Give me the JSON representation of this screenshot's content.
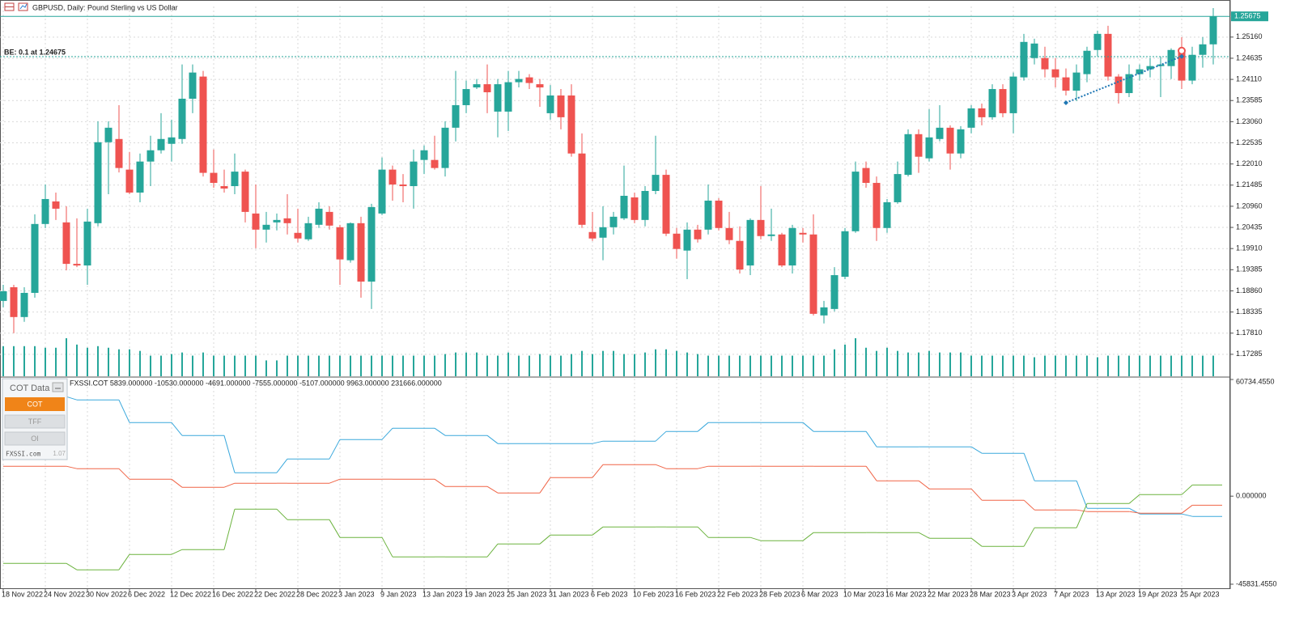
{
  "header": {
    "title": "GBPUSD, Daily:  Pound Sterling vs US Dollar"
  },
  "chart_data": [
    {
      "type": "candlestick",
      "categories": [
        "18 Nov 2022",
        null,
        null,
        null,
        "24 Nov 2022",
        null,
        null,
        null,
        "30 Nov 2022",
        null,
        null,
        null,
        "6 Dec 2022",
        null,
        null,
        null,
        "12 Dec 2022",
        null,
        null,
        null,
        "16 Dec 2022",
        null,
        null,
        null,
        "22 Dec 2022",
        null,
        null,
        null,
        "28 Dec 2022",
        null,
        null,
        null,
        "3 Jan 2023",
        null,
        null,
        null,
        "9 Jan 2023",
        null,
        null,
        null,
        "13 Jan 2023",
        null,
        null,
        null,
        "19 Jan 2023",
        null,
        null,
        null,
        "25 Jan 2023",
        null,
        null,
        null,
        "31 Jan 2023",
        null,
        null,
        null,
        "6 Feb 2023",
        null,
        null,
        null,
        "10 Feb 2023",
        null,
        null,
        null,
        "16 Feb 2023",
        null,
        null,
        null,
        "22 Feb 2023",
        null,
        null,
        null,
        "28 Feb 2023",
        null,
        null,
        null,
        "6 Mar 2023",
        null,
        null,
        null,
        "10 Mar 2023",
        null,
        null,
        null,
        "16 Mar 2023",
        null,
        null,
        null,
        "22 Mar 2023",
        null,
        null,
        null,
        "28 Mar 2023",
        null,
        null,
        null,
        "3 Apr 2023",
        null,
        null,
        null,
        "7 Apr 2023",
        null,
        null,
        null,
        "13 Apr 2023",
        null,
        null,
        null,
        "19 Apr 2023",
        null,
        null,
        null,
        "25 Apr 2023",
        null,
        null,
        null
      ],
      "open": [
        1.1861,
        1.1895,
        1.1821,
        1.1881,
        1.2052,
        1.2108,
        1.2056,
        1.1953,
        1.1949,
        1.2054,
        1.2255,
        1.2263,
        1.2187,
        1.213,
        1.2207,
        1.2235,
        1.2251,
        1.2263,
        1.2363,
        1.2418,
        1.2179,
        1.2146,
        1.2146,
        1.2182,
        1.2078,
        1.2038,
        1.2056,
        1.2066,
        1.203,
        1.2014,
        1.205,
        1.2082,
        1.2044,
        1.1962,
        1.2054,
        1.1909,
        1.2078,
        1.2187,
        1.215,
        1.2146,
        1.2211,
        1.2211,
        1.2191,
        1.2291,
        1.2347,
        1.2391,
        1.2399,
        1.2331,
        1.2331,
        1.2404,
        1.2416,
        1.2399,
        1.2327,
        1.2371,
        1.2371,
        1.2227,
        1.2032,
        1.2018,
        1.2044,
        1.2066,
        1.2118,
        1.2062,
        1.2134,
        1.2174,
        1.2028,
        1.1986,
        1.2038,
        1.2038,
        1.211,
        1.2042,
        1.201,
        1.1949,
        1.2062,
        1.2022,
        1.2026,
        1.1949,
        1.203,
        1.2026,
        1.1825,
        1.1841,
        1.1921,
        1.2034,
        1.2191,
        1.2154,
        1.2042,
        1.2106,
        1.2174,
        1.2275,
        1.2215,
        1.2263,
        1.2291,
        1.2227,
        1.2291,
        1.2339,
        1.2317,
        1.2387,
        1.2327,
        1.2416,
        1.2464,
        1.2464,
        1.2436,
        1.2416,
        1.2383,
        1.2424,
        1.2484,
        1.2524,
        1.2418,
        1.2377,
        1.2424,
        1.2436,
        1.2444,
        1.2444,
        1.2484,
        1.2408,
        1.2472,
        1.2498
      ],
      "high": [
        1.1901,
        1.1901,
        1.1895,
        1.2076,
        1.215,
        1.213,
        1.2096,
        1.2066,
        1.209,
        1.2307,
        1.2307,
        1.2347,
        1.2231,
        1.2227,
        1.2271,
        1.2327,
        1.2311,
        1.2448,
        1.2448,
        1.2432,
        1.2237,
        1.2187,
        1.2227,
        1.2187,
        1.215,
        1.2082,
        1.2078,
        1.2126,
        1.209,
        1.207,
        1.2106,
        1.2096,
        1.205,
        1.2056,
        1.207,
        1.2102,
        1.2217,
        1.2197,
        1.2176,
        1.2237,
        1.2247,
        1.2271,
        1.2307,
        1.2432,
        1.2408,
        1.2412,
        1.2448,
        1.2412,
        1.2432,
        1.2432,
        1.2424,
        1.2412,
        1.2397,
        1.2387,
        1.2399,
        1.2277,
        1.2082,
        1.2096,
        1.2082,
        1.2197,
        1.213,
        1.2146,
        1.2271,
        1.2187,
        1.2042,
        1.2056,
        1.205,
        1.215,
        1.2116,
        1.2082,
        1.2046,
        1.2066,
        1.2146,
        1.209,
        1.203,
        1.205,
        1.2042,
        1.2076,
        1.1861,
        1.1945,
        1.2042,
        1.2207,
        1.2207,
        1.217,
        1.2114,
        1.2207,
        1.2287,
        1.2287,
        1.2337,
        1.2347,
        1.2297,
        1.2295,
        1.2347,
        1.2351,
        1.2399,
        1.2399,
        1.2428,
        1.2524,
        1.2512,
        1.2492,
        1.2464,
        1.2438,
        1.2448,
        1.2492,
        1.2532,
        1.2544,
        1.2424,
        1.2448,
        1.2448,
        1.2464,
        1.2468,
        1.2488,
        1.2516,
        1.2492,
        1.2516,
        1.2588
      ],
      "low": [
        1.1845,
        1.1781,
        1.1809,
        1.1869,
        1.2042,
        1.2062,
        1.1937,
        1.1945,
        1.1901,
        1.2046,
        1.2126,
        1.218,
        1.2126,
        1.2106,
        1.2146,
        1.2227,
        1.2207,
        1.2251,
        1.2327,
        1.217,
        1.2142,
        1.213,
        1.2126,
        1.2056,
        1.1992,
        1.2006,
        1.2036,
        1.2026,
        1.2006,
        1.201,
        1.2042,
        1.2038,
        1.1901,
        1.1956,
        1.1869,
        1.1841,
        1.2074,
        1.211,
        1.2106,
        1.209,
        1.2176,
        1.2187,
        1.217,
        1.2257,
        1.2327,
        1.2387,
        1.2327,
        1.2267,
        1.2283,
        1.2391,
        1.2387,
        1.2343,
        1.2311,
        1.2287,
        1.2219,
        1.2042,
        1.201,
        1.1962,
        1.2026,
        1.2062,
        1.2054,
        1.2046,
        1.2126,
        1.2022,
        1.1966,
        1.1915,
        1.2006,
        1.2026,
        1.2036,
        1.2002,
        1.1929,
        1.1925,
        1.2014,
        1.201,
        1.1945,
        1.1929,
        1.2006,
        1.1825,
        1.1805,
        1.1835,
        1.1915,
        1.203,
        1.2142,
        1.201,
        1.203,
        1.2102,
        1.217,
        1.2179,
        1.2207,
        1.2257,
        1.2187,
        1.2215,
        1.2277,
        1.2297,
        1.2311,
        1.2317,
        1.2277,
        1.2408,
        1.2448,
        1.2416,
        1.2391,
        1.2371,
        1.2357,
        1.2404,
        1.2468,
        1.2408,
        1.2351,
        1.2367,
        1.2408,
        1.2416,
        1.2367,
        1.2412,
        1.2387,
        1.2399,
        1.244,
        1.2448
      ],
      "close": [
        1.1885,
        1.1821,
        1.1881,
        1.2052,
        1.2114,
        1.209,
        1.1953,
        1.1949,
        1.2058,
        1.2255,
        1.2291,
        1.2191,
        1.213,
        1.2207,
        1.2235,
        1.2263,
        1.2267,
        1.2363,
        1.2428,
        1.2179,
        1.2154,
        1.214,
        1.2182,
        1.2082,
        1.2038,
        1.205,
        1.2062,
        1.2054,
        1.2016,
        1.2054,
        1.209,
        1.2048,
        1.1964,
        1.2054,
        1.1909,
        1.2094,
        1.2187,
        1.215,
        1.2146,
        1.2207,
        1.2235,
        1.2191,
        1.2291,
        1.2347,
        1.2387,
        1.2399,
        1.2379,
        1.2399,
        1.2404,
        1.2412,
        1.2402,
        1.2391,
        1.2371,
        1.2317,
        1.2227,
        1.205,
        1.2016,
        1.2044,
        1.207,
        1.2122,
        1.2062,
        1.2134,
        1.2174,
        1.2028,
        1.199,
        1.2038,
        1.2014,
        1.211,
        1.2042,
        1.2012,
        1.1939,
        1.2062,
        1.2022,
        1.2026,
        1.1949,
        1.2042,
        1.2026,
        1.1829,
        1.1845,
        1.1925,
        1.2034,
        1.2182,
        1.2154,
        1.2042,
        1.2106,
        1.2176,
        1.2275,
        1.2219,
        1.2267,
        1.2291,
        1.2227,
        1.2287,
        1.2339,
        1.2317,
        1.2387,
        1.2327,
        1.2418,
        1.2504,
        1.25,
        1.2436,
        1.2416,
        1.2383,
        1.2428,
        1.2482,
        1.2524,
        1.2418,
        1.2377,
        1.2424,
        1.2436,
        1.2444,
        1.2448,
        1.2484,
        1.2408,
        1.2472,
        1.2498,
        1.25675
      ],
      "up_color": "#26a69a",
      "down_color": "#ef5350",
      "volume": {
        "color": "#26a69a",
        "values": [
          38,
          38,
          38,
          38,
          36,
          36,
          48,
          40,
          36,
          38,
          36,
          34,
          34,
          32,
          26,
          26,
          28,
          30,
          26,
          30,
          26,
          26,
          26,
          26,
          26,
          20,
          20,
          26,
          26,
          26,
          26,
          26,
          26,
          26,
          26,
          26,
          26,
          26,
          26,
          26,
          26,
          26,
          28,
          30,
          30,
          30,
          26,
          26,
          30,
          26,
          26,
          28,
          26,
          26,
          28,
          32,
          28,
          32,
          32,
          28,
          28,
          30,
          34,
          34,
          32,
          30,
          28,
          26,
          26,
          26,
          26,
          26,
          26,
          26,
          26,
          26,
          26,
          26,
          26,
          34,
          40,
          48,
          36,
          32,
          36,
          32,
          30,
          30,
          32,
          30,
          30,
          30,
          26,
          26,
          26,
          26,
          26,
          26,
          24,
          26,
          26,
          26,
          26,
          26,
          24,
          26,
          26,
          26,
          26,
          26,
          26,
          26,
          26,
          26,
          26,
          26
        ]
      },
      "ylim": [
        1.1674,
        1.2592
      ],
      "yticks": [
        {
          "value": 1.2516,
          "label": "1.25160"
        },
        1.24635,
        {
          "value": 1.2411,
          "label": "1.24110"
        },
        1.23585,
        {
          "value": 1.2306,
          "label": "1.23060"
        },
        1.22535,
        {
          "value": 1.2201,
          "label": "1.22010"
        },
        1.21485,
        {
          "value": 1.2096,
          "label": "1.20960"
        },
        1.20435,
        {
          "value": 1.1991,
          "label": "1.19910"
        },
        1.19385,
        {
          "value": 1.1886,
          "label": "1.18860"
        },
        1.18335,
        {
          "value": 1.1781,
          "label": "1.17810"
        },
        1.17285
      ],
      "grid": true,
      "current_price": 1.25675,
      "price_line_color": "#26a69a",
      "breakeven": 1.24675,
      "breakeven_label": "BE: 0.1 at 1.24675",
      "trade": {
        "x": [
          101,
          112
        ],
        "values": [
          1.2353,
          1.2468
        ],
        "color": "#1f77b4"
      }
    },
    {
      "type": "step-line",
      "title": "FXSSI.COT 5839.000000 -10530.000000 -4691.000000 -7555.000000 -5107.000000 9963.000000 231666.000000",
      "x": [
        0,
        7,
        12,
        17,
        22,
        27,
        32,
        37,
        42,
        47,
        52,
        57,
        63,
        67,
        72,
        77,
        83,
        88,
        93,
        98,
        103,
        108,
        113
      ],
      "xlim": [
        -0.3,
        116.6
      ],
      "series": [
        {
          "color": "#3aa8dc",
          "values": [
            51808,
            50123,
            38329,
            31590,
            12215,
            19375,
            29484,
            35381,
            31590,
            27378,
            27378,
            28642,
            33696,
            38329,
            38329,
            33696,
            25693,
            25693,
            22324,
            8003,
            -6318,
            -9266,
            -10530
          ]
        },
        {
          "color": "#f06446",
          "values": [
            15584,
            14321,
            8845,
            4633,
            6739,
            6739,
            8845,
            8845,
            5054,
            1685,
            9688,
            16427,
            14321,
            15584,
            15584,
            15584,
            8003,
            3791,
            -2106,
            -7160,
            -8003,
            -8845,
            -4691
          ]
        },
        {
          "color": "#6cb33f",
          "values": [
            -34960,
            -38329,
            -30326,
            -27799,
            -6739,
            -12215,
            -21481,
            -31590,
            -31590,
            -24851,
            -20218,
            -16006,
            -16006,
            -21481,
            -23166,
            -18954,
            -18954,
            -21902,
            -26114,
            -16427,
            -3791,
            842,
            5839
          ]
        }
      ],
      "ylim": [
        -45831.455,
        60734.455
      ],
      "yticks": [
        {
          "value": 60734.455,
          "label": "60734.4550"
        },
        {
          "value": 0,
          "label": "0.000000"
        },
        {
          "value": -45831.455,
          "label": "-45831.4550"
        }
      ]
    }
  ],
  "cot_panel": {
    "title": "COT Data",
    "buttons": [
      "COT",
      "TFF",
      "OI"
    ],
    "brand": "FXSSI.com",
    "version": "1.07"
  }
}
